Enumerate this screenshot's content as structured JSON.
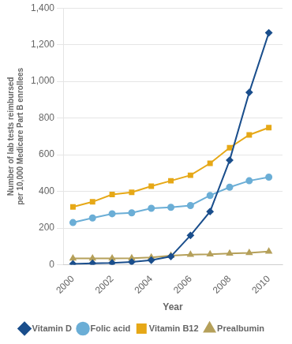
{
  "chart_data": {
    "type": "line",
    "x_label": "Year",
    "y_label": "Number of lab tests reimbursed\nper 10,000 Medicare Part B enrollees",
    "x": [
      2000,
      2001,
      2002,
      2003,
      2004,
      2005,
      2006,
      2007,
      2008,
      2009,
      2010
    ],
    "series": [
      {
        "name": "Vitamin D",
        "color": "#1a4e8c",
        "marker": "diamond",
        "values": [
          5,
          8,
          10,
          15,
          25,
          45,
          160,
          290,
          570,
          940,
          1265
        ]
      },
      {
        "name": "Folic acid",
        "color": "#6baed6",
        "marker": "circle",
        "values": [
          230,
          255,
          278,
          283,
          308,
          313,
          323,
          378,
          423,
          458,
          478
        ]
      },
      {
        "name": "Vitamin B12",
        "color": "#e6a817",
        "marker": "square",
        "values": [
          315,
          343,
          383,
          395,
          428,
          458,
          488,
          553,
          638,
          708,
          748
        ]
      },
      {
        "name": "Prealbumin",
        "color": "#b5a05a",
        "marker": "triangle",
        "values": [
          35,
          35,
          35,
          36,
          40,
          50,
          55,
          57,
          62,
          65,
          72
        ]
      }
    ],
    "xlim": [
      1999.5,
      2010.7
    ],
    "xticks": [
      2000,
      2002,
      2004,
      2006,
      2008,
      2010
    ],
    "ylim": [
      0,
      1400
    ],
    "yticks": [
      0,
      200,
      400,
      600,
      800,
      {
        "value": 1000,
        "label": "1,000"
      },
      {
        "value": 1200,
        "label": "1,200"
      },
      {
        "value": 1400,
        "label": "1,400"
      }
    ],
    "grid": "y",
    "legend": "bottom"
  }
}
